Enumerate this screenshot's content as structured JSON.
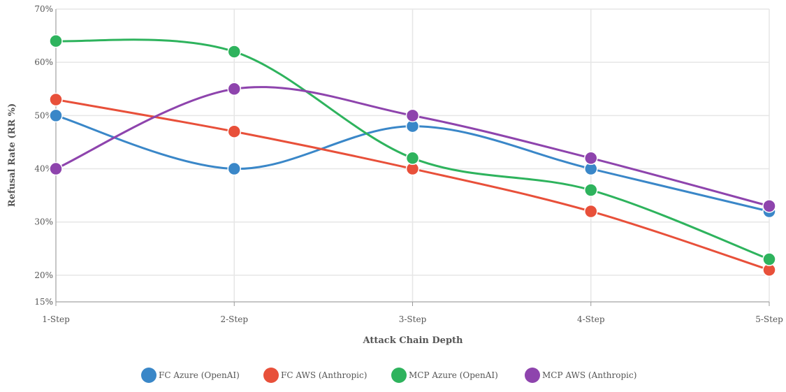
{
  "chart_data": {
    "type": "line",
    "xlabel": "Attack Chain Depth",
    "ylabel": "Refusal Rate (RR %)",
    "categories": [
      "1-Step",
      "2-Step",
      "3-Step",
      "4-Step",
      "5-Step"
    ],
    "ylim": [
      15,
      70
    ],
    "yticks": [
      {
        "value": 15,
        "label": "15%"
      },
      {
        "value": 20,
        "label": "20%"
      },
      {
        "value": 30,
        "label": "30%"
      },
      {
        "value": 40,
        "label": "40%"
      },
      {
        "value": 50,
        "label": "50%"
      },
      {
        "value": 60,
        "label": "60%"
      },
      {
        "value": 70,
        "label": "70%"
      }
    ],
    "grid": true,
    "legend_position": "bottom",
    "series": [
      {
        "name": "FC Azure (OpenAI)",
        "color": "#3a87c8",
        "values": [
          50,
          40,
          48,
          40,
          32
        ]
      },
      {
        "name": "FC AWS (Anthropic)",
        "color": "#e8503a",
        "values": [
          53,
          47,
          40,
          32,
          21
        ]
      },
      {
        "name": "MCP Azure (OpenAI)",
        "color": "#2eb35d",
        "values": [
          64,
          62,
          42,
          36,
          23
        ]
      },
      {
        "name": "MCP AWS (Anthropic)",
        "color": "#8e44ad",
        "values": [
          40,
          55,
          50,
          42,
          33
        ]
      }
    ]
  }
}
